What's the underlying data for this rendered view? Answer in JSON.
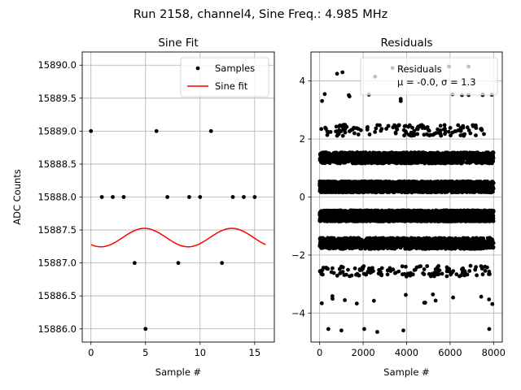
{
  "suptitle": "Run 2158, channel4, Sine Freq.: 4.985 MHz",
  "chart_data": [
    {
      "type": "scatter",
      "title": "Sine Fit",
      "xlabel": "Sample #",
      "ylabel": "ADC Counts",
      "xlim": [
        -0.8,
        16.8
      ],
      "ylim": [
        15885.8,
        15890.2
      ],
      "xticks": [
        0,
        5,
        10,
        15
      ],
      "xtick_labels": [
        "0",
        "5",
        "10",
        "15"
      ],
      "yticks": [
        15886.0,
        15886.5,
        15887.0,
        15887.5,
        15888.0,
        15888.5,
        15889.0,
        15889.5,
        15890.0
      ],
      "ytick_labels": [
        "15886.0",
        "15886.5",
        "15887.0",
        "15887.5",
        "15888.0",
        "15888.5",
        "15889.0",
        "15889.5",
        "15890.0"
      ],
      "grid": true,
      "legend": {
        "placement": "top-right",
        "entries": [
          "Samples",
          "Sine fit"
        ]
      },
      "series": [
        {
          "name": "Samples",
          "kind": "points",
          "color": "#000000",
          "x": [
            0,
            1,
            2,
            3,
            4,
            5,
            6,
            7,
            8,
            9,
            10,
            11,
            12,
            13,
            14,
            15
          ],
          "y": [
            15889,
            15888,
            15888,
            15888,
            15887,
            15886,
            15889,
            15888,
            15887,
            15888,
            15888,
            15889,
            15887,
            15888,
            15888,
            15888
          ]
        },
        {
          "name": "Sine fit",
          "kind": "line",
          "color": "#ff0000",
          "x_range": [
            0,
            16
          ],
          "fit": {
            "offset": 15887.385,
            "amplitude": 0.14,
            "period": 8.0,
            "phase_peak_x": 4.9
          }
        }
      ]
    },
    {
      "type": "scatter",
      "title": "Residuals",
      "xlabel": "Sample #",
      "xlim": [
        -400,
        8400
      ],
      "ylim": [
        -5.0,
        5.0
      ],
      "xticks": [
        0,
        2000,
        4000,
        6000,
        8000
      ],
      "xtick_labels": [
        "0",
        "2000",
        "4000",
        "6000",
        "8000"
      ],
      "yticks": [
        -4,
        -2,
        0,
        2,
        4
      ],
      "ytick_labels": [
        "−4",
        "−2",
        "0",
        "2",
        "4"
      ],
      "grid": true,
      "legend": {
        "placement": "top-right",
        "entries": [
          "Residuals",
          "μ = -0.0, σ = 1.3"
        ]
      },
      "series": [
        {
          "name": "Residuals",
          "kind": "points",
          "color": "#000000",
          "n_points": 8000,
          "bands": [
            -3.5,
            -2.55,
            -1.6,
            -0.65,
            0.35,
            1.35,
            2.3,
            3.4
          ],
          "outliers": [
            {
              "x": 400,
              "y": -4.55
            },
            {
              "x": 1000,
              "y": -4.6
            },
            {
              "x": 2050,
              "y": -4.55
            },
            {
              "x": 2650,
              "y": -4.65
            },
            {
              "x": 3850,
              "y": -4.6
            },
            {
              "x": 7800,
              "y": -4.55
            },
            {
              "x": 800,
              "y": 4.25
            },
            {
              "x": 1050,
              "y": 4.3
            },
            {
              "x": 2550,
              "y": 4.15
            },
            {
              "x": 3350,
              "y": 4.45
            },
            {
              "x": 5950,
              "y": 4.5
            },
            {
              "x": 6850,
              "y": 4.5
            }
          ]
        }
      ]
    }
  ]
}
